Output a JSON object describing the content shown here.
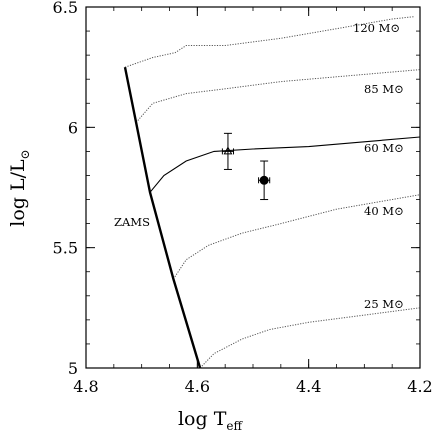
{
  "chart_data": {
    "type": "line",
    "xlabel": "log T",
    "xlabel_sub": "eff",
    "ylabel": "log L/L",
    "ylabel_sub": "⊙",
    "xlim": [
      4.8,
      4.2
    ],
    "ylim": [
      5.0,
      6.5
    ],
    "x_ticks": [
      4.8,
      4.6,
      4.4,
      4.2
    ],
    "x_tick_labels": [
      "4.8",
      "4.6",
      "4.4",
      "4.2"
    ],
    "y_ticks": [
      5.0,
      5.5,
      6.0,
      6.5
    ],
    "y_tick_labels": [
      "5",
      "5.5",
      "6",
      "6.5"
    ],
    "zams": {
      "label": "ZAMS",
      "points": [
        [
          4.73,
          6.25
        ],
        [
          4.71,
          6.02
        ],
        [
          4.685,
          5.73
        ],
        [
          4.643,
          5.37
        ],
        [
          4.595,
          5.0
        ]
      ]
    },
    "tracks": [
      {
        "label": "120 M⊙",
        "style": "dotted",
        "points": [
          [
            4.73,
            6.25
          ],
          [
            4.68,
            6.29
          ],
          [
            4.64,
            6.31
          ],
          [
            4.62,
            6.34
          ],
          [
            4.55,
            6.34
          ],
          [
            4.45,
            6.37
          ],
          [
            4.35,
            6.41
          ],
          [
            4.25,
            6.45
          ],
          [
            4.21,
            6.46
          ]
        ]
      },
      {
        "label": "85 M⊙",
        "style": "dotted",
        "points": [
          [
            4.71,
            6.02
          ],
          [
            4.68,
            6.1
          ],
          [
            4.62,
            6.14
          ],
          [
            4.55,
            6.16
          ],
          [
            4.45,
            6.19
          ],
          [
            4.35,
            6.21
          ],
          [
            4.25,
            6.23
          ],
          [
            4.2,
            6.24
          ]
        ]
      },
      {
        "label": "60 M⊙",
        "style": "solid",
        "points": [
          [
            4.685,
            5.73
          ],
          [
            4.66,
            5.8
          ],
          [
            4.62,
            5.86
          ],
          [
            4.57,
            5.9
          ],
          [
            4.5,
            5.91
          ],
          [
            4.4,
            5.92
          ],
          [
            4.3,
            5.94
          ],
          [
            4.2,
            5.96
          ]
        ]
      },
      {
        "label": "40 M⊙",
        "style": "dotted",
        "points": [
          [
            4.643,
            5.37
          ],
          [
            4.62,
            5.45
          ],
          [
            4.58,
            5.51
          ],
          [
            4.52,
            5.56
          ],
          [
            4.45,
            5.6
          ],
          [
            4.35,
            5.66
          ],
          [
            4.25,
            5.7
          ],
          [
            4.2,
            5.72
          ]
        ]
      },
      {
        "label": "25 M⊙",
        "style": "dotted",
        "points": [
          [
            4.595,
            5.0
          ],
          [
            4.57,
            5.06
          ],
          [
            4.52,
            5.12
          ],
          [
            4.47,
            5.16
          ],
          [
            4.4,
            5.19
          ],
          [
            4.3,
            5.22
          ],
          [
            4.2,
            5.25
          ]
        ]
      }
    ],
    "observations": [
      {
        "x": 4.545,
        "y": 5.9,
        "xerr": 0.01,
        "yerr": 0.075,
        "marker": "open-triangle"
      },
      {
        "x": 4.48,
        "y": 5.78,
        "xerr": 0.01,
        "yerr": 0.08,
        "marker": "filled-circle"
      }
    ]
  }
}
